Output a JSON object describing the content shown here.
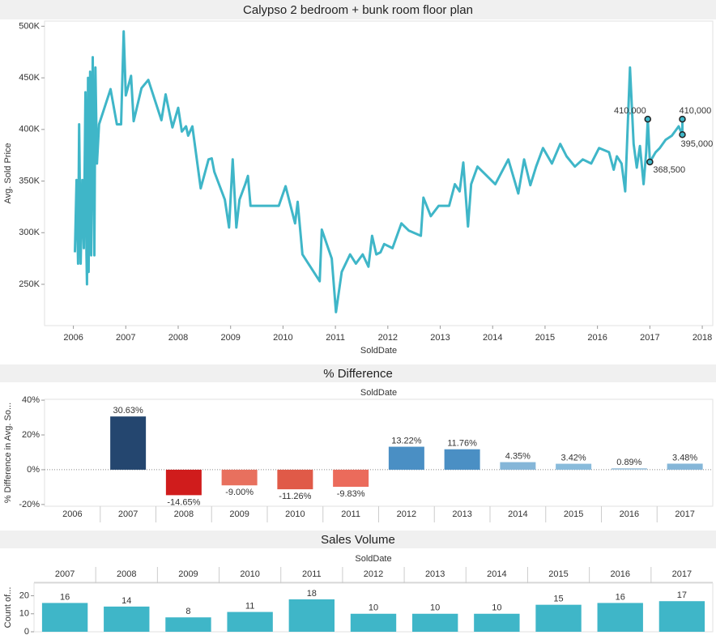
{
  "chart_data": [
    {
      "type": "line",
      "title": "Calypso 2 bedroom + bunk room floor plan",
      "x_label": "SoldDate",
      "y_label": "Avg. Sold Price",
      "color": "#3fb6c8",
      "x": [
        2006.03,
        2006.06,
        2006.09,
        2006.11,
        2006.14,
        2006.17,
        2006.2,
        2006.23,
        2006.25,
        2006.26,
        2006.28,
        2006.29,
        2006.32,
        2006.34,
        2006.37,
        2006.4,
        2006.42,
        2006.45,
        2006.49,
        2006.71,
        2006.83,
        2006.91,
        2006.96,
        2007.0,
        2007.1,
        2007.15,
        2007.3,
        2007.43,
        2007.68,
        2007.76,
        2007.89,
        2008.0,
        2008.07,
        2008.15,
        2008.19,
        2008.27,
        2008.43,
        2008.58,
        2008.64,
        2008.69,
        2008.89,
        2008.97,
        2009.04,
        2009.11,
        2009.17,
        2009.28,
        2009.33,
        2009.38,
        2009.5,
        2009.92,
        2010.05,
        2010.23,
        2010.28,
        2010.37,
        2010.7,
        2010.74,
        2010.93,
        2011.01,
        2011.12,
        2011.28,
        2011.39,
        2011.52,
        2011.63,
        2011.7,
        2011.78,
        2011.86,
        2011.93,
        2012.09,
        2012.26,
        2012.4,
        2012.63,
        2012.68,
        2012.82,
        2012.97,
        2013.17,
        2013.28,
        2013.37,
        2013.44,
        2013.53,
        2013.59,
        2013.71,
        2014.05,
        2014.3,
        2014.49,
        2014.6,
        2014.72,
        2014.83,
        2014.96,
        2015.13,
        2015.29,
        2015.41,
        2015.57,
        2015.72,
        2015.88,
        2016.03,
        2016.22,
        2016.31,
        2016.37,
        2016.46,
        2016.53,
        2016.62,
        2016.69,
        2016.75,
        2016.81,
        2016.88,
        2016.93,
        2016.96,
        2017.0,
        2017.11,
        2017.19,
        2017.3,
        2017.42,
        2017.55,
        2017.62,
        2017.62
      ],
      "values": [
        281000,
        351000,
        270000,
        405000,
        270000,
        351000,
        285000,
        436000,
        278000,
        250000,
        450000,
        262000,
        456000,
        278000,
        470000,
        278000,
        460000,
        367000,
        405000,
        439000,
        405000,
        405000,
        495000,
        433000,
        452000,
        408000,
        440000,
        448000,
        409000,
        434000,
        402000,
        421000,
        398000,
        403000,
        394000,
        403000,
        343000,
        371000,
        372000,
        359000,
        332000,
        305000,
        371000,
        305000,
        332000,
        347000,
        355000,
        326000,
        326000,
        326000,
        345000,
        309000,
        330000,
        279000,
        253000,
        303000,
        275000,
        223000,
        262000,
        279000,
        270000,
        279000,
        267000,
        297000,
        279000,
        281000,
        289000,
        285000,
        309000,
        302000,
        297000,
        334000,
        316000,
        326000,
        326000,
        347000,
        340000,
        368000,
        306000,
        347000,
        364000,
        347000,
        371000,
        338000,
        371000,
        346000,
        364000,
        382000,
        367000,
        386000,
        374000,
        364000,
        371000,
        367000,
        382000,
        378000,
        361000,
        374000,
        367000,
        340000,
        460000,
        386000,
        363000,
        384000,
        347000,
        378000,
        410000,
        368500,
        378000,
        382000,
        390000,
        394000,
        403000,
        395000,
        410000
      ],
      "annotations": [
        {
          "x": 2016.96,
          "y": 410000,
          "label": "410,000"
        },
        {
          "x": 2017.0,
          "y": 368500,
          "label": "368,500"
        },
        {
          "x": 2017.62,
          "y": 410000,
          "label": "410,000"
        },
        {
          "x": 2017.62,
          "y": 395000,
          "label": "395,000"
        }
      ],
      "xlim": [
        2005.45,
        2018.2
      ],
      "xticks": [
        2006,
        2007,
        2008,
        2009,
        2010,
        2011,
        2012,
        2013,
        2014,
        2015,
        2016,
        2017,
        2018
      ],
      "ylim": [
        210000,
        505000
      ],
      "yticks": [
        {
          "value": 250000,
          "label": "250K"
        },
        {
          "value": 300000,
          "label": "300K"
        },
        {
          "value": 350000,
          "label": "350K"
        },
        {
          "value": 400000,
          "label": "400K"
        },
        {
          "value": 450000,
          "label": "450K"
        },
        {
          "value": 500000,
          "label": "500K"
        }
      ]
    },
    {
      "type": "bar",
      "title": "% Difference",
      "x_label": "SoldDate",
      "y_label": "% Difference in Avg. So...",
      "x_axis_position": "bottom",
      "zero_line": true,
      "categories": [
        "2006",
        "2007",
        "2008",
        "2009",
        "2010",
        "2011",
        "2012",
        "2013",
        "2014",
        "2015",
        "2016",
        "2017"
      ],
      "values": [
        null,
        30.63,
        -14.65,
        -9.0,
        -11.26,
        -9.83,
        13.22,
        11.76,
        4.35,
        3.42,
        0.89,
        3.48
      ],
      "value_labels": [
        null,
        "30.63%",
        "-14.65%",
        "-9.00%",
        "-11.26%",
        "-9.83%",
        "13.22%",
        "11.76%",
        "4.35%",
        "3.42%",
        "0.89%",
        "3.48%"
      ],
      "colors": [
        null,
        "#24466f",
        "#d01c1c",
        "#e8705e",
        "#e05a48",
        "#eb6b5b",
        "#4a8fc4",
        "#4a8fc4",
        "#85b6d8",
        "#89bbdb",
        "#a9c9e0",
        "#85b6d8"
      ],
      "ylim": [
        -21,
        40.5
      ],
      "yticks": [
        {
          "value": -20,
          "label": "-20%"
        },
        {
          "value": 0,
          "label": "0%"
        },
        {
          "value": 20,
          "label": "20%"
        },
        {
          "value": 40,
          "label": "40%"
        }
      ]
    },
    {
      "type": "bar",
      "title": "Sales Volume",
      "x_label": "SoldDate",
      "y_label": "Count of...",
      "x_axis_position": "top",
      "color": "#3fb6c8",
      "categories": [
        "2007",
        "2008",
        "2009",
        "2010",
        "2011",
        "2012",
        "2013",
        "2014",
        "2015",
        "2016",
        "2017"
      ],
      "values": [
        16,
        14,
        8,
        11,
        18,
        10,
        10,
        10,
        15,
        16,
        17
      ],
      "ylim": [
        0,
        27
      ],
      "yticks": [
        0,
        10,
        20
      ]
    }
  ]
}
